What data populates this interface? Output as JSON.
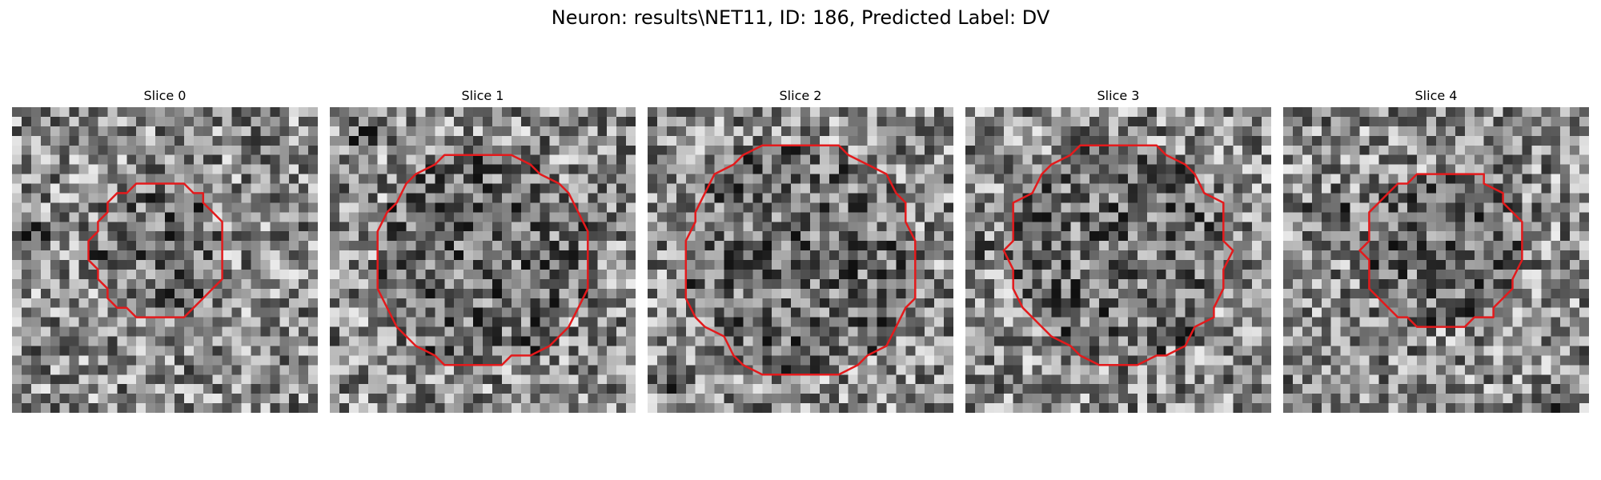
{
  "figure": {
    "title": "Neuron: results\\NET11, ID: 186, Predicted Label: DV"
  },
  "panels": [
    {
      "title": "Slice 0",
      "seed": 11,
      "center": [
        0.48,
        0.47
      ],
      "radius": 0.22,
      "dark_blobs": [
        [
          0.05,
          0.45,
          0.1
        ],
        [
          0.62,
          0.3,
          0.06
        ]
      ]
    },
    {
      "title": "Slice 1",
      "seed": 23,
      "center": [
        0.5,
        0.5
      ],
      "radius": 0.35,
      "dark_blobs": [
        [
          0.1,
          0.1,
          0.08
        ]
      ]
    },
    {
      "title": "Slice 2",
      "seed": 37,
      "center": [
        0.5,
        0.5
      ],
      "radius": 0.38,
      "dark_blobs": [
        [
          0.08,
          0.9,
          0.08
        ]
      ]
    },
    {
      "title": "Slice 3",
      "seed": 41,
      "center": [
        0.5,
        0.48
      ],
      "radius": 0.36,
      "dark_blobs": [
        [
          0.02,
          0.45,
          0.07
        ]
      ]
    },
    {
      "title": "Slice 4",
      "seed": 53,
      "center": [
        0.52,
        0.47
      ],
      "radius": 0.26,
      "dark_blobs": [
        [
          0.15,
          0.35,
          0.1
        ],
        [
          0.9,
          0.95,
          0.08
        ]
      ]
    }
  ],
  "colors": {
    "contour": "#e31a1c",
    "background": "#ffffff"
  }
}
